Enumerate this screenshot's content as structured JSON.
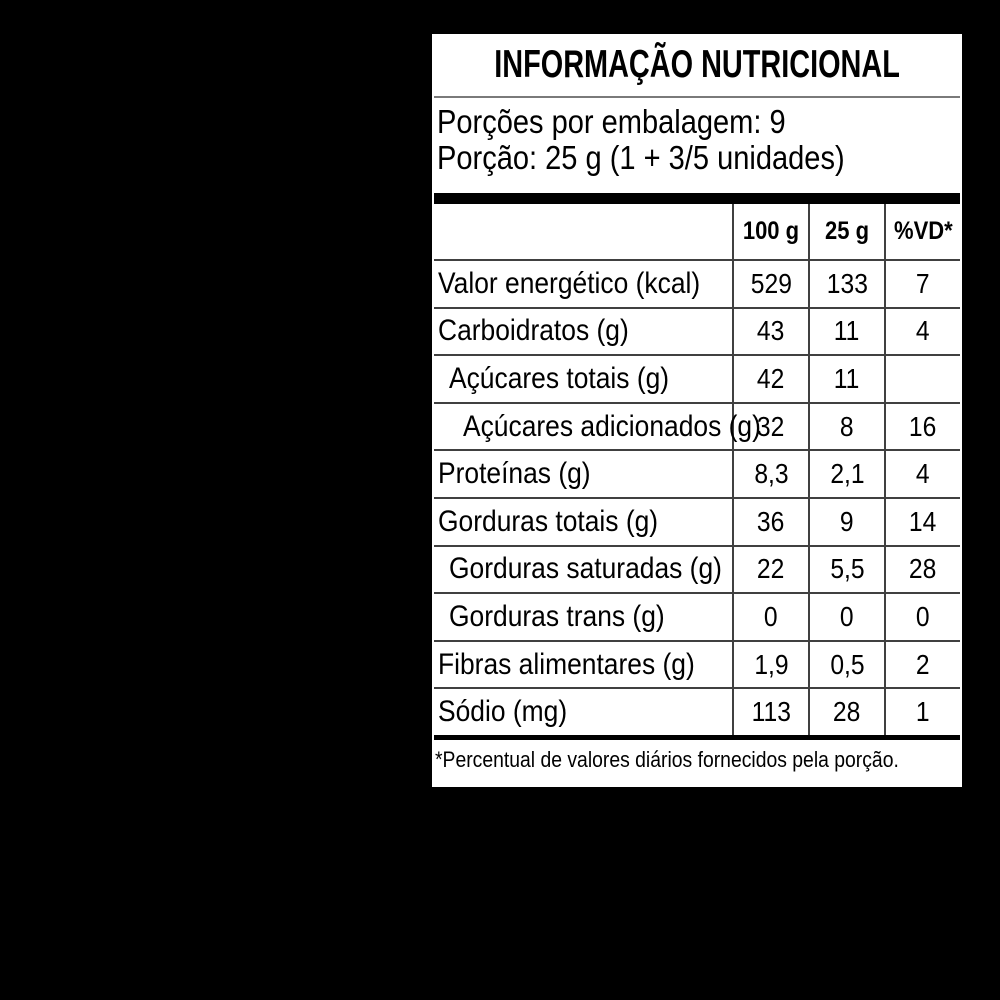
{
  "panel": {
    "title": "INFORMAÇÃO NUTRICIONAL",
    "servings_line": "Porções por embalagem: 9",
    "portion_line": "Porção: 25 g (1 + 3/5 unidades)",
    "footnote": "*Percentual de valores diários fornecidos pela porção."
  },
  "table": {
    "headers": {
      "per100": "100 g",
      "per25": "25 g",
      "vd": "%VD*"
    },
    "rows": [
      {
        "label": "Valor energético (kcal)",
        "indent": 0,
        "v100": "529",
        "v25": "133",
        "vd": "7"
      },
      {
        "label": "Carboidratos (g)",
        "indent": 0,
        "v100": "43",
        "v25": "11",
        "vd": "4"
      },
      {
        "label": "Açúcares totais (g)",
        "indent": 1,
        "v100": "42",
        "v25": "11",
        "vd": ""
      },
      {
        "label": "Açúcares adicionados (g)",
        "indent": 2,
        "v100": "32",
        "v25": "8",
        "vd": "16"
      },
      {
        "label": "Proteínas (g)",
        "indent": 0,
        "v100": "8,3",
        "v25": "2,1",
        "vd": "4"
      },
      {
        "label": "Gorduras totais (g)",
        "indent": 0,
        "v100": "36",
        "v25": "9",
        "vd": "14"
      },
      {
        "label": "Gorduras saturadas (g)",
        "indent": 1,
        "v100": "22",
        "v25": "5,5",
        "vd": "28"
      },
      {
        "label": "Gorduras trans (g)",
        "indent": 1,
        "v100": "0",
        "v25": "0",
        "vd": "0"
      },
      {
        "label": "Fibras alimentares (g)",
        "indent": 0,
        "v100": "1,9",
        "v25": "0,5",
        "vd": "2"
      },
      {
        "label": "Sódio (mg)",
        "indent": 0,
        "v100": "113",
        "v25": "28",
        "vd": "1"
      }
    ]
  },
  "colors": {
    "page_bg": "#000000",
    "panel_bg": "#ffffff",
    "text": "#000000",
    "grid_line": "#404040",
    "title_rule": "#7a7a7a"
  }
}
